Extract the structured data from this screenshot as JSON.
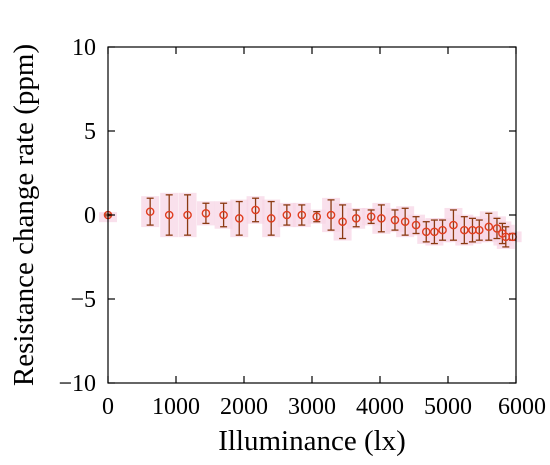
{
  "chart_data": {
    "type": "scatter",
    "xlabel": "Illuminance (lx)",
    "ylabel": "Resistance change rate (ppm)",
    "xlim": [
      0,
      6000
    ],
    "ylim": [
      -10,
      10
    ],
    "x_ticks": [
      "0",
      "1000",
      "2000",
      "3000",
      "4000",
      "5000",
      "6000"
    ],
    "y_ticks": [
      "10",
      "5",
      "0",
      "−5",
      "−10"
    ],
    "x_tick_values": [
      0,
      1000,
      2000,
      3000,
      4000,
      5000,
      6000
    ],
    "y_tick_values": [
      10,
      5,
      0,
      -5,
      -10
    ],
    "grid": false,
    "error_bars": true,
    "series": [
      {
        "marker": "open-circle",
        "marker_color": "#e03c1e",
        "errorbar_color": "#8b3a12",
        "highlight_color": "#f7d6e6",
        "points": [
          {
            "x": 0,
            "y": 0.0,
            "err": 0.05
          },
          {
            "x": 620,
            "y": 0.2,
            "err": 0.8
          },
          {
            "x": 900,
            "y": 0.0,
            "err": 1.2
          },
          {
            "x": 1170,
            "y": 0.0,
            "err": 1.2
          },
          {
            "x": 1440,
            "y": 0.1,
            "err": 0.6
          },
          {
            "x": 1700,
            "y": 0.0,
            "err": 0.7
          },
          {
            "x": 1930,
            "y": -0.2,
            "err": 1.0
          },
          {
            "x": 2170,
            "y": 0.3,
            "err": 0.7
          },
          {
            "x": 2400,
            "y": -0.2,
            "err": 1.0
          },
          {
            "x": 2630,
            "y": 0.0,
            "err": 0.6
          },
          {
            "x": 2850,
            "y": 0.0,
            "err": 0.6
          },
          {
            "x": 3070,
            "y": -0.1,
            "err": 0.3
          },
          {
            "x": 3280,
            "y": 0.0,
            "err": 0.9
          },
          {
            "x": 3450,
            "y": -0.4,
            "err": 1.0
          },
          {
            "x": 3650,
            "y": -0.2,
            "err": 0.5
          },
          {
            "x": 3870,
            "y": -0.1,
            "err": 0.4
          },
          {
            "x": 4020,
            "y": -0.2,
            "err": 0.8
          },
          {
            "x": 4220,
            "y": -0.3,
            "err": 0.6
          },
          {
            "x": 4370,
            "y": -0.4,
            "err": 0.8
          },
          {
            "x": 4530,
            "y": -0.6,
            "err": 0.5
          },
          {
            "x": 4680,
            "y": -1.0,
            "err": 0.6
          },
          {
            "x": 4800,
            "y": -1.0,
            "err": 0.7
          },
          {
            "x": 4920,
            "y": -0.9,
            "err": 0.6
          },
          {
            "x": 5080,
            "y": -0.6,
            "err": 0.9
          },
          {
            "x": 5240,
            "y": -0.9,
            "err": 0.8
          },
          {
            "x": 5360,
            "y": -0.9,
            "err": 0.7
          },
          {
            "x": 5460,
            "y": -0.9,
            "err": 0.6
          },
          {
            "x": 5600,
            "y": -0.7,
            "err": 0.8
          },
          {
            "x": 5720,
            "y": -0.8,
            "err": 0.6
          },
          {
            "x": 5800,
            "y": -1.1,
            "err": 0.6
          },
          {
            "x": 5850,
            "y": -1.3,
            "err": 0.6
          },
          {
            "x": 5950,
            "y": -1.3,
            "err": 0.2
          }
        ]
      }
    ]
  }
}
